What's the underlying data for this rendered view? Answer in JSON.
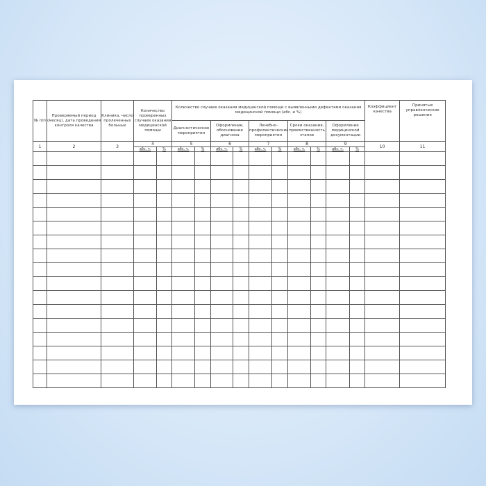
{
  "header": {
    "col1": "№ п/п",
    "col2": "Проверяемый период (месяц), дата проведения контроля качества",
    "col3": "Клиника, число пролеченных больных",
    "col4": "Количество проверенных случаев оказания медицинской помощи",
    "group": "Количество случаев оказания медицинской помощи с выявленными дефектами оказания медицинской помощи (абс. и %)",
    "col5": "Диагностические мероприятия",
    "col6": "Оформление, обоснование диагноза",
    "col7": "Лечебно-профилактические мероприятия",
    "col8": "Сроки оказания, преемственность этапов",
    "col9": "Оформление медицинской документации",
    "col10": "Коэффициент качества",
    "col11": "Принятые управленческие решения"
  },
  "numbers": [
    "1",
    "2",
    "3",
    "4",
    "5",
    "6",
    "7",
    "8",
    "9",
    "10",
    "11"
  ],
  "sub": {
    "abs": "абс. ч.",
    "pct": "%"
  },
  "empty_rows": 17
}
